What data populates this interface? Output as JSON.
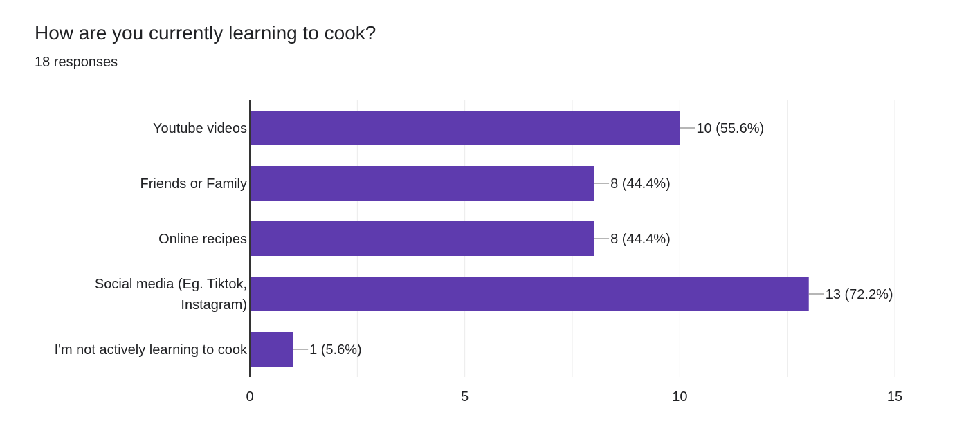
{
  "header": {
    "title": "How are you currently learning to cook?",
    "responses": "18 responses"
  },
  "colors": {
    "bar": "#5e3bae",
    "grid": "#ebebeb",
    "axis": "#333333",
    "leader": "#9e9e9e",
    "text": "#202124"
  },
  "chart_data": {
    "type": "bar",
    "orientation": "horizontal",
    "categories": [
      [
        "Youtube videos"
      ],
      [
        "Friends or Family"
      ],
      [
        "Online recipes"
      ],
      [
        "Social media (Eg. Tiktok,",
        "Instagram)"
      ],
      [
        "I'm not actively learning to cook"
      ]
    ],
    "values": [
      10,
      8,
      8,
      13,
      1
    ],
    "value_labels": [
      "10 (55.6%)",
      "8 (44.4%)",
      "8 (44.4%)",
      "13 (72.2%)",
      "1 (5.6%)"
    ],
    "xlim": [
      0,
      15
    ],
    "xticks": [
      0,
      5,
      10,
      15
    ],
    "grid": true
  }
}
